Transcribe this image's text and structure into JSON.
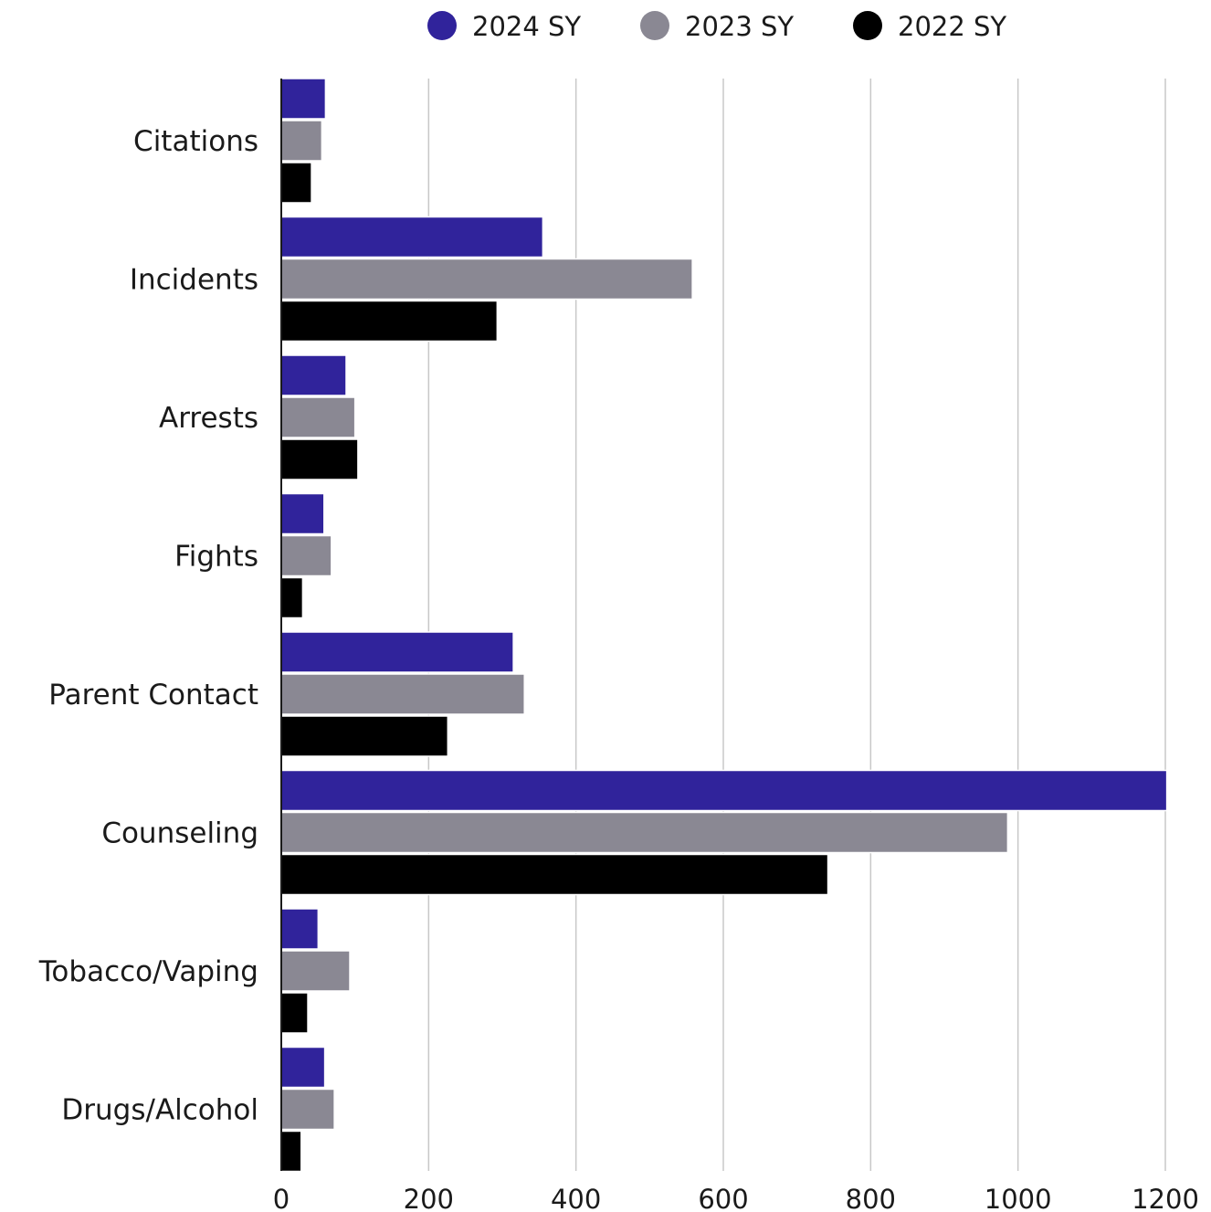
{
  "chart_data": {
    "type": "bar",
    "orientation": "horizontal",
    "categories": [
      "Citations",
      "Incidents",
      "Arrests",
      "Fights",
      "Parent Contact",
      "Counseling",
      "Tobacco/Vaping",
      "Drugs/Alcohol"
    ],
    "series": [
      {
        "name": "2024 SY",
        "color": "#30239b",
        "values": [
          60,
          355,
          88,
          58,
          315,
          1202,
          50,
          59
        ]
      },
      {
        "name": "2023 SY",
        "color": "#8a8893",
        "values": [
          55,
          558,
          100,
          68,
          330,
          986,
          93,
          72
        ]
      },
      {
        "name": "2022 SY",
        "color": "#000000",
        "values": [
          41,
          293,
          104,
          29,
          226,
          742,
          36,
          27
        ]
      }
    ],
    "xlim": [
      0,
      1200
    ],
    "xticks": [
      0,
      200,
      400,
      600,
      800,
      1000,
      1200
    ],
    "grid": true,
    "legend": "top-center",
    "title": "",
    "xlabel": "",
    "ylabel": ""
  }
}
